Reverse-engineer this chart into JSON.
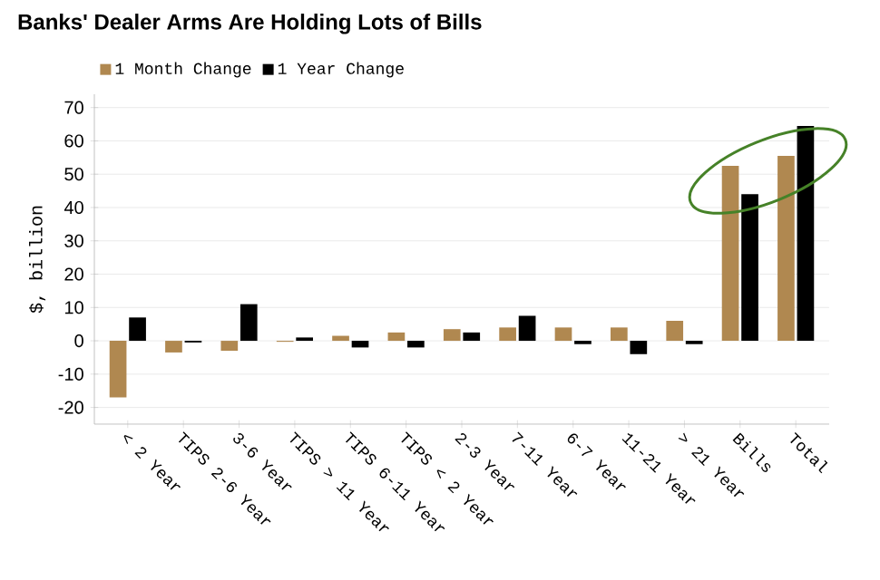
{
  "chart_data": {
    "type": "bar",
    "title": "Banks' Dealer Arms Are Holding Lots of Bills",
    "ylabel": "$, billion",
    "categories": [
      "< 2 Year",
      "TIPS 2-6 Year",
      "3-6 Year",
      "TIPS > 11 Year",
      "TIPS 6-11 Year",
      "TIPS < 2 Year",
      "2-3 Year",
      "7-11 Year",
      "6-7 Year",
      "11-21 Year",
      "> 21 Year",
      "Bills",
      "Total"
    ],
    "series": [
      {
        "name": "1 Month Change",
        "color": "#b08850",
        "values": [
          -17,
          -3.5,
          -3,
          -0.3,
          1.5,
          2.5,
          3.5,
          4,
          4,
          4,
          6,
          52.5,
          55.5
        ]
      },
      {
        "name": "1 Year Change",
        "color": "#000000",
        "values": [
          7,
          -0.5,
          11,
          1,
          -2,
          -2,
          2.5,
          7.5,
          -1,
          -4,
          -1,
          44,
          64.5
        ]
      }
    ],
    "ylim": [
      -25,
      74
    ],
    "yticks": [
      -20,
      -10,
      0,
      10,
      20,
      30,
      40,
      50,
      60,
      70
    ],
    "grid": "y",
    "legend": "top left"
  }
}
